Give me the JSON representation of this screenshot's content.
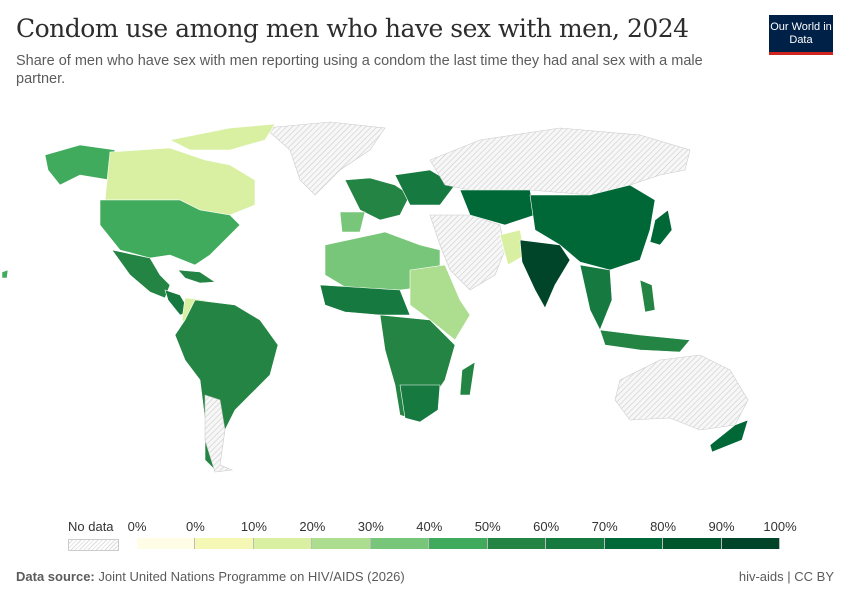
{
  "header": {
    "title": "Condom use among men who have sex with men, 2024",
    "subtitle": "Share of men who have sex with men reporting using a condom the last time they had anal sex with a male partner.",
    "logo": "Our World in Data"
  },
  "legend": {
    "no_data_label": "No data",
    "no_data_pattern": "hatched-gray",
    "tick_labels": [
      "0%",
      "0%",
      "10%",
      "20%",
      "30%",
      "40%",
      "50%",
      "60%",
      "70%",
      "80%",
      "90%",
      "100%"
    ],
    "bin_colors": [
      "#fffde6",
      "#f5f8b4",
      "#d9f0a3",
      "#addd8e",
      "#78c679",
      "#41ab5d",
      "#238443",
      "#16793f",
      "#006837",
      "#00552d",
      "#004529"
    ]
  },
  "footer": {
    "source_label": "Data source:",
    "source": "Joint United Nations Programme on HIV/AIDS (2026)",
    "license": "hiv-aids | CC BY"
  }
}
